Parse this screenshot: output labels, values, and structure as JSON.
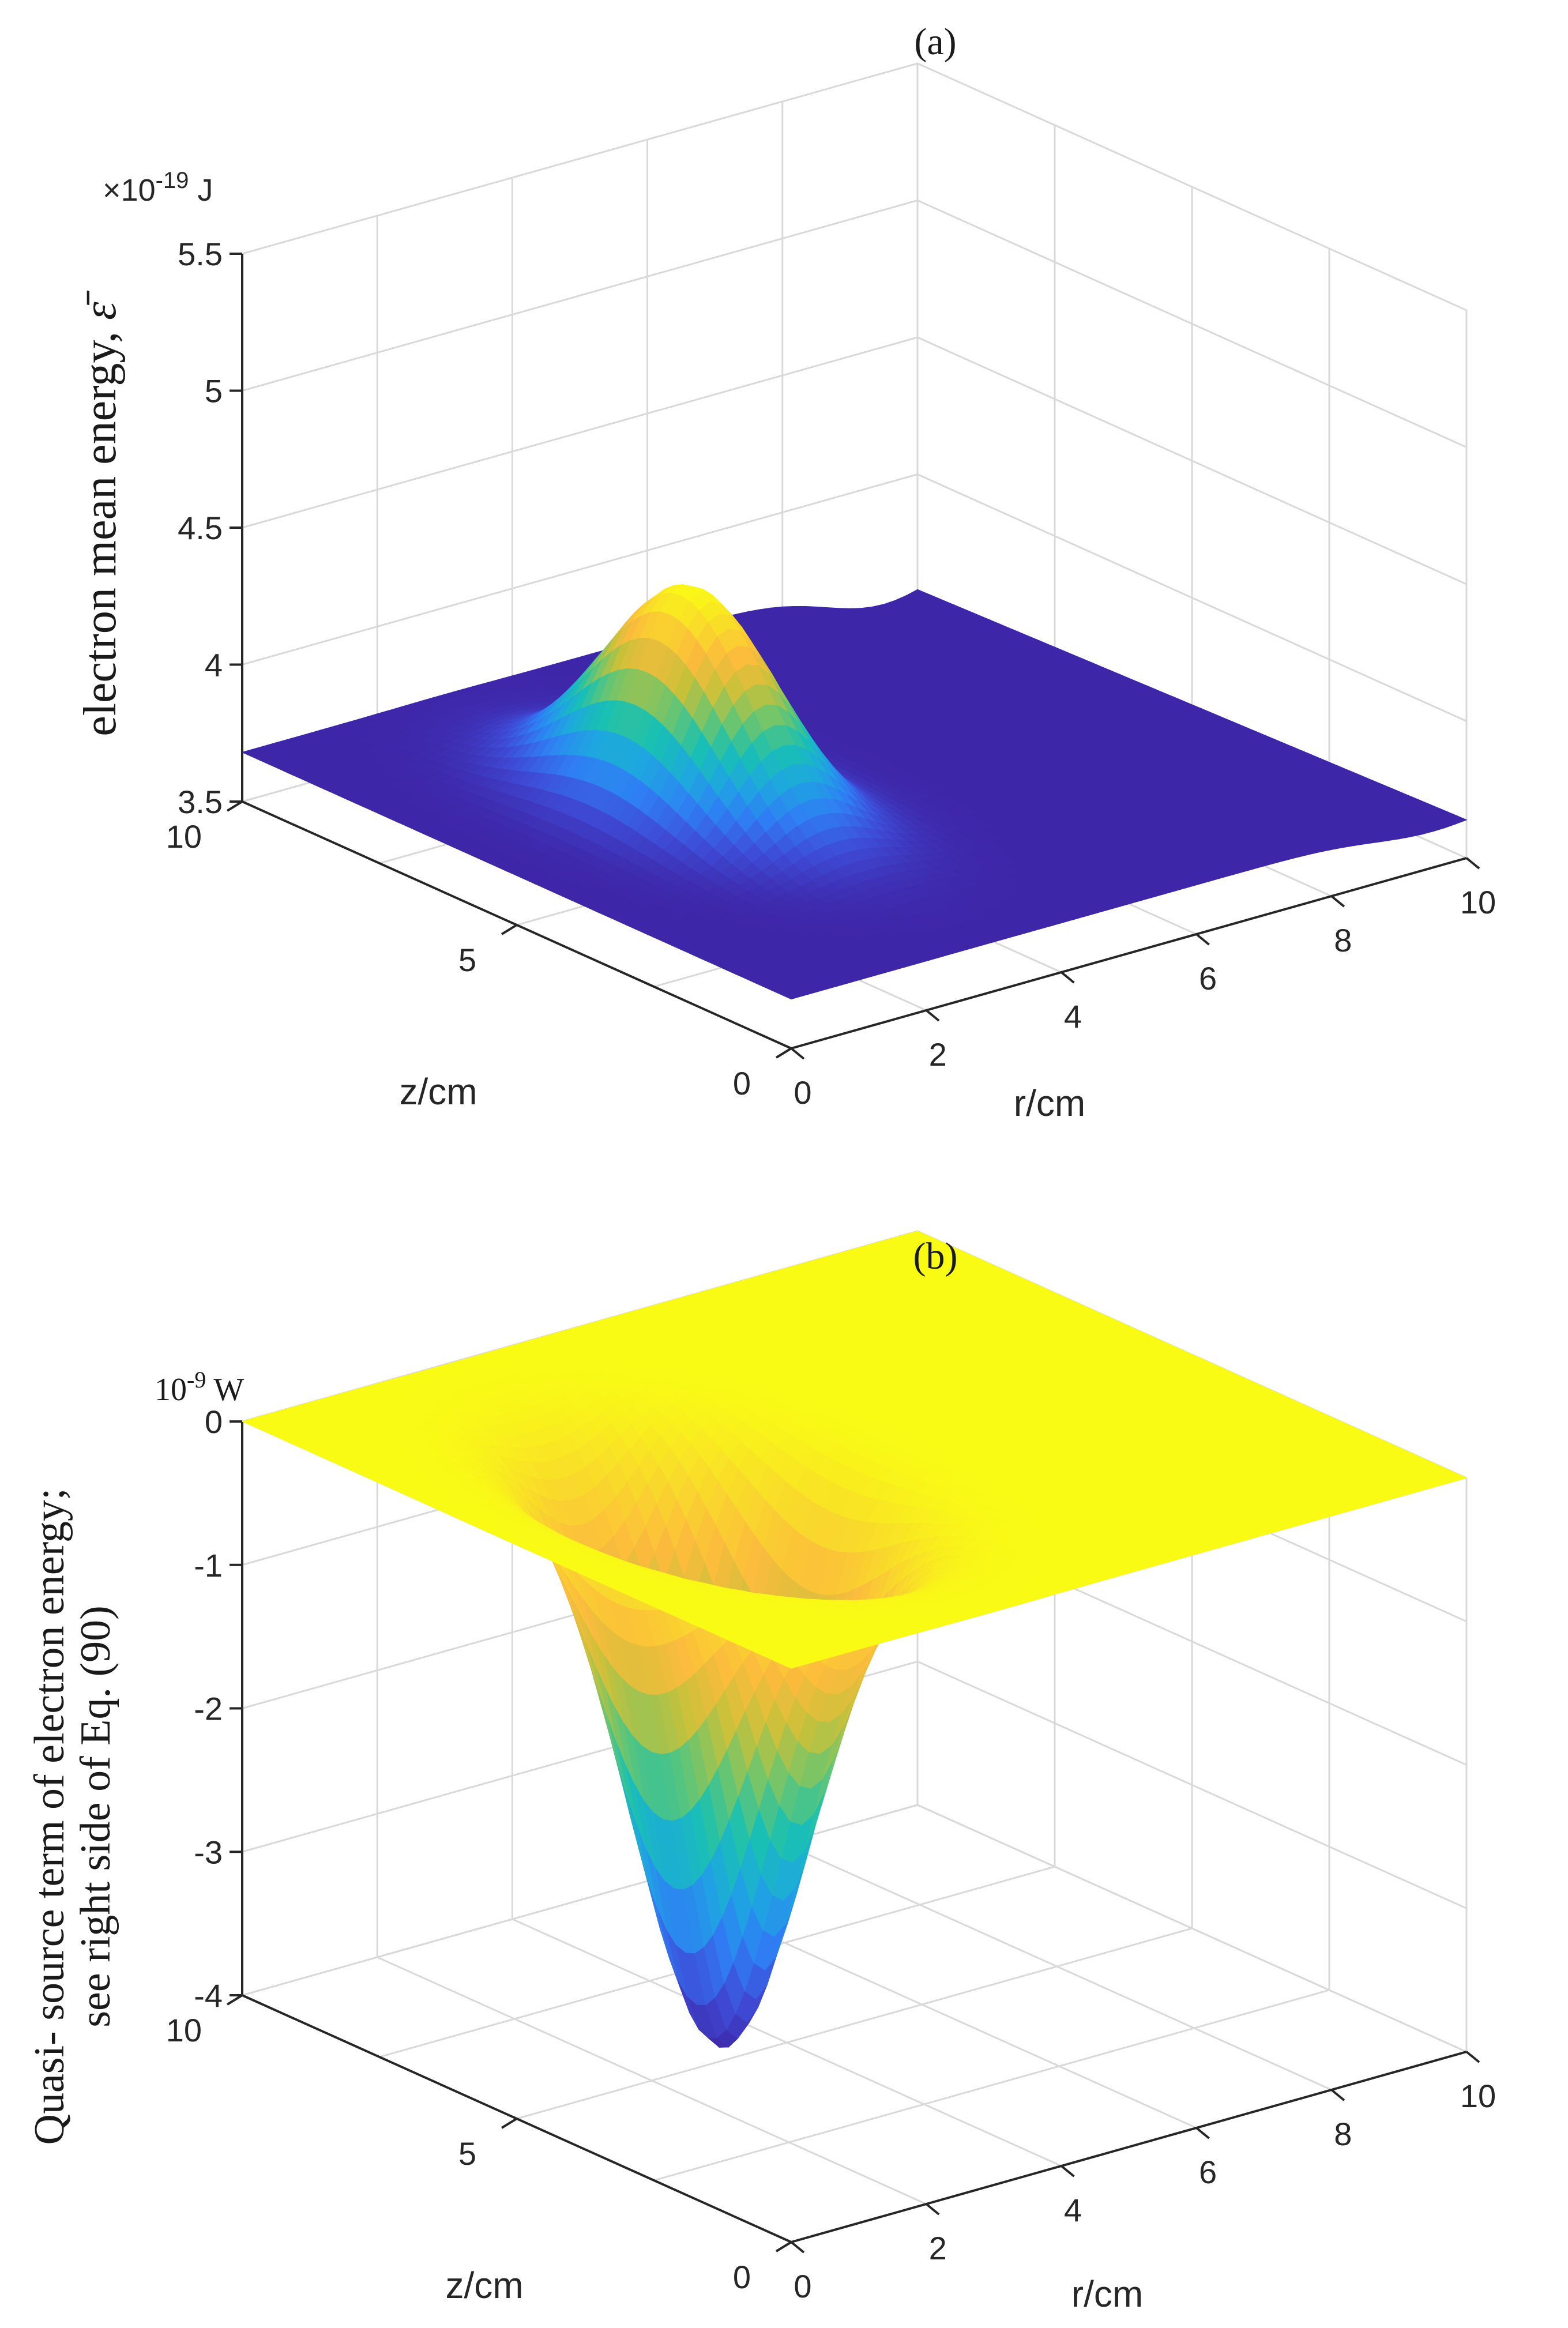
{
  "chart_data": [
    {
      "type": "surface",
      "panel_label": "(a)",
      "title": "",
      "xlabel": "r/cm",
      "ylabel": "z/cm",
      "zlabel_main": "electron mean energy,",
      "zlabel_symbol": "ε̄",
      "z_multiplier_base": "×10",
      "z_multiplier_exp": "-19",
      "z_unit": " J",
      "xlim": [
        0,
        10
      ],
      "ylim": [
        0,
        10
      ],
      "zlim": [
        3.5,
        5.5
      ],
      "x_ticks": [
        0,
        2,
        4,
        6,
        8,
        10
      ],
      "y_ticks": [
        0,
        5,
        10
      ],
      "z_ticks": [
        3.5,
        4,
        4.5,
        5,
        5.5
      ],
      "x_tick_labels": [
        "0",
        "2",
        "4",
        "6",
        "8",
        "10"
      ],
      "y_tick_labels": [
        "0",
        "5",
        "10"
      ],
      "z_tick_labels": [
        "3.5",
        "4",
        "4.5",
        "5",
        "5.5"
      ],
      "baseline_value": 3.68,
      "peak_value": 4.48,
      "peak_r": 3.0,
      "peak_z": 5.5,
      "colormap": [
        "#3e26a8",
        "#3e4bd6",
        "#2f7ef4",
        "#1ea7e0",
        "#19c0b2",
        "#6cc56e",
        "#c8c13a",
        "#fcbb3d",
        "#f9dc2a",
        "#f9fb15"
      ]
    },
    {
      "type": "surface",
      "panel_label": "(b)",
      "title": "",
      "xlabel": "r/cm",
      "ylabel": "z/cm",
      "zlabel_line1": "Quasi- source term of electron energy;",
      "zlabel_line2": "see right side of Eq. (90)",
      "z_multiplier_base": "10",
      "z_multiplier_exp": "-9",
      "z_unit": " W",
      "xlim": [
        0,
        10
      ],
      "ylim": [
        0,
        10
      ],
      "zlim": [
        -4,
        0
      ],
      "x_ticks": [
        0,
        2,
        4,
        6,
        8,
        10
      ],
      "y_ticks": [
        0,
        5,
        10
      ],
      "z_ticks": [
        -4,
        -3,
        -2,
        -1,
        0
      ],
      "x_tick_labels": [
        "0",
        "2",
        "4",
        "6",
        "8",
        "10"
      ],
      "y_tick_labels": [
        "0",
        "5",
        "10"
      ],
      "z_tick_labels": [
        "-4",
        "-3",
        "-2",
        "-1",
        "0"
      ],
      "baseline_value": 0.0,
      "trough_value": -3.9,
      "trough_r": 3.0,
      "trough_z": 5.0,
      "colormap": [
        "#3e26a8",
        "#3e4bd6",
        "#2f7ef4",
        "#1ea7e0",
        "#19c0b2",
        "#6cc56e",
        "#c8c13a",
        "#fcbb3d",
        "#f9dc2a",
        "#f9fb15"
      ]
    }
  ]
}
